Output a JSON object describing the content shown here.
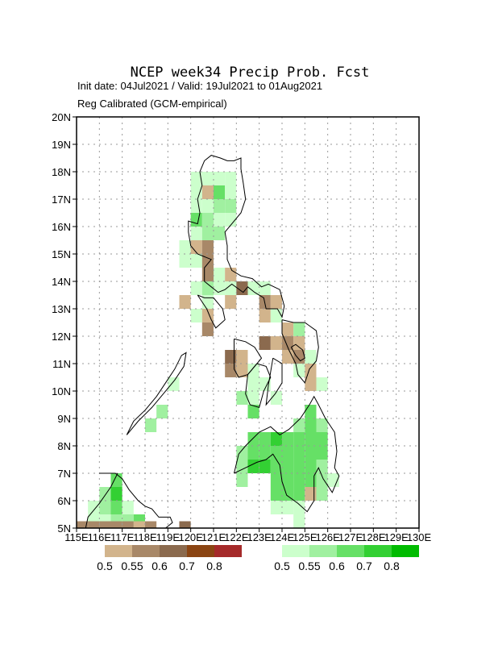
{
  "title": "NCEP week34 Precip Prob. Fcst",
  "subtitle_line1": "Init date: 04Jul2021 / Valid: 19Jul2021 to 01Aug2021",
  "subtitle_line2": "Reg Calibrated (GCM-empirical)",
  "map": {
    "lon_range": [
      115,
      130
    ],
    "lat_range": [
      5,
      20
    ],
    "lat_ticks": [
      "5N",
      "6N",
      "7N",
      "8N",
      "9N",
      "10N",
      "11N",
      "12N",
      "13N",
      "14N",
      "15N",
      "16N",
      "17N",
      "18N",
      "19N",
      "20N"
    ],
    "lon_ticks": [
      "115E",
      "116E",
      "117E",
      "118E",
      "119E",
      "120E",
      "121E",
      "122E",
      "123E",
      "124E",
      "125E",
      "126E",
      "127E",
      "128E",
      "129E",
      "130E"
    ],
    "grid": "dotted"
  },
  "legend": {
    "dry": {
      "colors": [
        "#d2b48c",
        "#a88868",
        "#8b6a4e",
        "#8b4513",
        "#a52a2a"
      ],
      "labels": [
        "0.5",
        "0.55",
        "0.6",
        "0.7",
        "0.8"
      ]
    },
    "wet": {
      "colors": [
        "#ccffcc",
        "#a0f0a0",
        "#66e066",
        "#33d033",
        "#00bb00"
      ],
      "labels": [
        "0.5",
        "0.55",
        "0.6",
        "0.7",
        "0.8"
      ]
    }
  },
  "cells": [
    {
      "lon": 120.25,
      "lat": 17.75,
      "c": "#ccffcc"
    },
    {
      "lon": 120.75,
      "lat": 17.75,
      "c": "#ccffcc"
    },
    {
      "lon": 121.25,
      "lat": 17.75,
      "c": "#ccffcc"
    },
    {
      "lon": 121.75,
      "lat": 17.75,
      "c": "#ccffcc"
    },
    {
      "lon": 120.25,
      "lat": 17.25,
      "c": "#ccffcc"
    },
    {
      "lon": 120.75,
      "lat": 17.25,
      "c": "#d2b48c"
    },
    {
      "lon": 121.25,
      "lat": 17.25,
      "c": "#66e066"
    },
    {
      "lon": 121.75,
      "lat": 17.25,
      "c": "#ccffcc"
    },
    {
      "lon": 120.25,
      "lat": 16.75,
      "c": "#ccffcc"
    },
    {
      "lon": 120.75,
      "lat": 16.75,
      "c": "#ccffcc"
    },
    {
      "lon": 121.25,
      "lat": 16.75,
      "c": "#a0f0a0"
    },
    {
      "lon": 121.75,
      "lat": 16.75,
      "c": "#a0f0a0"
    },
    {
      "lon": 120.25,
      "lat": 16.25,
      "c": "#66e066"
    },
    {
      "lon": 120.75,
      "lat": 16.25,
      "c": "#a0f0a0"
    },
    {
      "lon": 121.25,
      "lat": 16.25,
      "c": "#ccffcc"
    },
    {
      "lon": 121.75,
      "lat": 16.25,
      "c": "#ccffcc"
    },
    {
      "lon": 120.25,
      "lat": 15.75,
      "c": "#ccffcc"
    },
    {
      "lon": 120.75,
      "lat": 15.75,
      "c": "#a0f0a0"
    },
    {
      "lon": 121.25,
      "lat": 15.75,
      "c": "#a0f0a0"
    },
    {
      "lon": 119.75,
      "lat": 15.25,
      "c": "#ccffcc"
    },
    {
      "lon": 120.25,
      "lat": 15.25,
      "c": "#d2b48c"
    },
    {
      "lon": 120.75,
      "lat": 15.25,
      "c": "#a88868"
    },
    {
      "lon": 119.75,
      "lat": 14.75,
      "c": "#ccffcc"
    },
    {
      "lon": 120.25,
      "lat": 14.75,
      "c": "#ccffcc"
    },
    {
      "lon": 120.75,
      "lat": 14.75,
      "c": "#a88868"
    },
    {
      "lon": 120.75,
      "lat": 14.25,
      "c": "#a88868"
    },
    {
      "lon": 121.25,
      "lat": 14.25,
      "c": "#ccffcc"
    },
    {
      "lon": 121.75,
      "lat": 14.25,
      "c": "#d2b48c"
    },
    {
      "lon": 120.25,
      "lat": 13.75,
      "c": "#ccffcc"
    },
    {
      "lon": 120.75,
      "lat": 13.75,
      "c": "#a0f0a0"
    },
    {
      "lon": 121.25,
      "lat": 13.75,
      "c": "#ccffcc"
    },
    {
      "lon": 121.75,
      "lat": 13.75,
      "c": "#ccffcc"
    },
    {
      "lon": 122.25,
      "lat": 13.75,
      "c": "#8b6a4e"
    },
    {
      "lon": 122.75,
      "lat": 13.75,
      "c": "#ccffcc"
    },
    {
      "lon": 123.25,
      "lat": 13.75,
      "c": "#ccffcc"
    },
    {
      "lon": 119.75,
      "lat": 13.25,
      "c": "#d2b48c"
    },
    {
      "lon": 120.75,
      "lat": 13.25,
      "c": "#ccffcc"
    },
    {
      "lon": 121.75,
      "lat": 13.25,
      "c": "#d2b48c"
    },
    {
      "lon": 123.25,
      "lat": 13.25,
      "c": "#a88868"
    },
    {
      "lon": 123.75,
      "lat": 13.25,
      "c": "#d2b48c"
    },
    {
      "lon": 120.25,
      "lat": 12.75,
      "c": "#ccffcc"
    },
    {
      "lon": 120.75,
      "lat": 12.75,
      "c": "#d2b48c"
    },
    {
      "lon": 123.25,
      "lat": 12.75,
      "c": "#d2b48c"
    },
    {
      "lon": 123.75,
      "lat": 12.75,
      "c": "#ccffcc"
    },
    {
      "lon": 120.75,
      "lat": 12.25,
      "c": "#a88868"
    },
    {
      "lon": 124.25,
      "lat": 12.25,
      "c": "#d2b48c"
    },
    {
      "lon": 124.75,
      "lat": 12.25,
      "c": "#a0f0a0"
    },
    {
      "lon": 123.25,
      "lat": 11.75,
      "c": "#8b6a4e"
    },
    {
      "lon": 123.75,
      "lat": 11.75,
      "c": "#d2b48c"
    },
    {
      "lon": 124.25,
      "lat": 11.75,
      "c": "#a88868"
    },
    {
      "lon": 124.75,
      "lat": 11.75,
      "c": "#d2b48c"
    },
    {
      "lon": 121.75,
      "lat": 11.25,
      "c": "#8b6a4e"
    },
    {
      "lon": 122.25,
      "lat": 11.25,
      "c": "#d2b48c"
    },
    {
      "lon": 124.25,
      "lat": 11.25,
      "c": "#d2b48c"
    },
    {
      "lon": 124.75,
      "lat": 11.25,
      "c": "#a88868"
    },
    {
      "lon": 125.25,
      "lat": 11.25,
      "c": "#ccffcc"
    },
    {
      "lon": 121.75,
      "lat": 10.75,
      "c": "#a88868"
    },
    {
      "lon": 122.25,
      "lat": 10.75,
      "c": "#d2b48c"
    },
    {
      "lon": 122.75,
      "lat": 10.75,
      "c": "#ccffcc"
    },
    {
      "lon": 124.75,
      "lat": 10.75,
      "c": "#ccffcc"
    },
    {
      "lon": 125.25,
      "lat": 10.75,
      "c": "#d2b48c"
    },
    {
      "lon": 119.25,
      "lat": 10.25,
      "c": "#ccffcc"
    },
    {
      "lon": 122.75,
      "lat": 10.25,
      "c": "#ccffcc"
    },
    {
      "lon": 123.25,
      "lat": 10.25,
      "c": "#ccffcc"
    },
    {
      "lon": 125.25,
      "lat": 10.25,
      "c": "#d2b48c"
    },
    {
      "lon": 125.75,
      "lat": 10.25,
      "c": "#ccffcc"
    },
    {
      "lon": 122.25,
      "lat": 9.75,
      "c": "#a0f0a0"
    },
    {
      "lon": 122.75,
      "lat": 9.75,
      "c": "#ccffcc"
    },
    {
      "lon": 123.75,
      "lat": 9.75,
      "c": "#ccffcc"
    },
    {
      "lon": 118.75,
      "lat": 9.25,
      "c": "#a0f0a0"
    },
    {
      "lon": 122.75,
      "lat": 9.25,
      "c": "#66e066"
    },
    {
      "lon": 125.25,
      "lat": 9.25,
      "c": "#66e066"
    },
    {
      "lon": 118.25,
      "lat": 8.75,
      "c": "#a0f0a0"
    },
    {
      "lon": 124.75,
      "lat": 8.75,
      "c": "#a0f0a0"
    },
    {
      "lon": 125.25,
      "lat": 8.75,
      "c": "#66e066"
    },
    {
      "lon": 125.75,
      "lat": 8.75,
      "c": "#a0f0a0"
    },
    {
      "lon": 122.75,
      "lat": 8.25,
      "c": "#66e066"
    },
    {
      "lon": 123.25,
      "lat": 8.25,
      "c": "#66e066"
    },
    {
      "lon": 123.75,
      "lat": 8.25,
      "c": "#33d033"
    },
    {
      "lon": 124.25,
      "lat": 8.25,
      "c": "#66e066"
    },
    {
      "lon": 124.75,
      "lat": 8.25,
      "c": "#66e066"
    },
    {
      "lon": 125.25,
      "lat": 8.25,
      "c": "#66e066"
    },
    {
      "lon": 125.75,
      "lat": 8.25,
      "c": "#66e066"
    },
    {
      "lon": 122.25,
      "lat": 7.75,
      "c": "#a0f0a0"
    },
    {
      "lon": 122.75,
      "lat": 7.75,
      "c": "#66e066"
    },
    {
      "lon": 123.25,
      "lat": 7.75,
      "c": "#66e066"
    },
    {
      "lon": 123.75,
      "lat": 7.75,
      "c": "#66e066"
    },
    {
      "lon": 124.25,
      "lat": 7.75,
      "c": "#66e066"
    },
    {
      "lon": 124.75,
      "lat": 7.75,
      "c": "#66e066"
    },
    {
      "lon": 125.25,
      "lat": 7.75,
      "c": "#66e066"
    },
    {
      "lon": 125.75,
      "lat": 7.75,
      "c": "#66e066"
    },
    {
      "lon": 122.25,
      "lat": 7.25,
      "c": "#a0f0a0"
    },
    {
      "lon": 122.75,
      "lat": 7.25,
      "c": "#33d033"
    },
    {
      "lon": 123.25,
      "lat": 7.25,
      "c": "#33d033"
    },
    {
      "lon": 123.75,
      "lat": 7.25,
      "c": "#66e066"
    },
    {
      "lon": 124.25,
      "lat": 7.25,
      "c": "#66e066"
    },
    {
      "lon": 124.75,
      "lat": 7.25,
      "c": "#66e066"
    },
    {
      "lon": 125.25,
      "lat": 7.25,
      "c": "#66e066"
    },
    {
      "lon": 125.75,
      "lat": 7.25,
      "c": "#a0f0a0"
    },
    {
      "lon": 116.75,
      "lat": 6.75,
      "c": "#66e066"
    },
    {
      "lon": 122.25,
      "lat": 6.75,
      "c": "#a0f0a0"
    },
    {
      "lon": 123.75,
      "lat": 6.75,
      "c": "#66e066"
    },
    {
      "lon": 124.25,
      "lat": 6.75,
      "c": "#66e066"
    },
    {
      "lon": 124.75,
      "lat": 6.75,
      "c": "#66e066"
    },
    {
      "lon": 125.25,
      "lat": 6.75,
      "c": "#66e066"
    },
    {
      "lon": 125.75,
      "lat": 6.75,
      "c": "#a0f0a0"
    },
    {
      "lon": 126.25,
      "lat": 6.75,
      "c": "#ccffcc"
    },
    {
      "lon": 116.25,
      "lat": 6.25,
      "c": "#a0f0a0"
    },
    {
      "lon": 116.75,
      "lat": 6.25,
      "c": "#33d033"
    },
    {
      "lon": 123.75,
      "lat": 6.25,
      "c": "#66e066"
    },
    {
      "lon": 124.25,
      "lat": 6.25,
      "c": "#66e066"
    },
    {
      "lon": 124.75,
      "lat": 6.25,
      "c": "#66e066"
    },
    {
      "lon": 125.25,
      "lat": 6.25,
      "c": "#d2b48c"
    },
    {
      "lon": 125.75,
      "lat": 6.25,
      "c": "#a0f0a0"
    },
    {
      "lon": 115.75,
      "lat": 5.75,
      "c": "#ccffcc"
    },
    {
      "lon": 116.25,
      "lat": 5.75,
      "c": "#a0f0a0"
    },
    {
      "lon": 116.75,
      "lat": 5.75,
      "c": "#66e066"
    },
    {
      "lon": 117.25,
      "lat": 5.75,
      "c": "#ccffcc"
    },
    {
      "lon": 123.75,
      "lat": 5.75,
      "c": "#ccffcc"
    },
    {
      "lon": 124.25,
      "lat": 5.75,
      "c": "#ccffcc"
    },
    {
      "lon": 124.75,
      "lat": 5.75,
      "c": "#ccffcc"
    },
    {
      "lon": 115.75,
      "lat": 5.25,
      "c": "#ccffcc"
    },
    {
      "lon": 116.25,
      "lat": 5.25,
      "c": "#ccffcc"
    },
    {
      "lon": 116.75,
      "lat": 5.25,
      "c": "#a0f0a0"
    },
    {
      "lon": 117.25,
      "lat": 5.25,
      "c": "#a0f0a0"
    },
    {
      "lon": 117.75,
      "lat": 5.25,
      "c": "#66e066"
    },
    {
      "lon": 124.75,
      "lat": 5.25,
      "c": "#ccffcc"
    },
    {
      "lon": 115.25,
      "lat": 5.0,
      "c": "#a88868"
    },
    {
      "lon": 115.75,
      "lat": 5.0,
      "c": "#a88868"
    },
    {
      "lon": 116.25,
      "lat": 5.0,
      "c": "#a88868"
    },
    {
      "lon": 116.75,
      "lat": 5.0,
      "c": "#a88868"
    },
    {
      "lon": 117.25,
      "lat": 5.0,
      "c": "#a88868"
    },
    {
      "lon": 117.75,
      "lat": 5.0,
      "c": "#d2b48c"
    },
    {
      "lon": 118.25,
      "lat": 5.0,
      "c": "#a88868"
    },
    {
      "lon": 119.75,
      "lat": 5.0,
      "c": "#8b6a4e"
    }
  ],
  "coastlines": [
    [
      [
        121.6,
        18.4
      ],
      [
        121.9,
        18.4
      ],
      [
        122.2,
        18.5
      ],
      [
        122.2,
        18.1
      ],
      [
        122.3,
        17.6
      ],
      [
        122.4,
        17.0
      ],
      [
        122.2,
        16.5
      ],
      [
        121.8,
        16.1
      ],
      [
        121.5,
        15.8
      ],
      [
        121.6,
        15.3
      ],
      [
        121.6,
        14.8
      ],
      [
        121.8,
        14.4
      ],
      [
        122.2,
        14.2
      ],
      [
        122.7,
        14.1
      ],
      [
        123.1,
        13.8
      ],
      [
        123.4,
        13.9
      ],
      [
        123.9,
        13.7
      ],
      [
        124.1,
        13.1
      ],
      [
        124.0,
        12.7
      ],
      [
        123.8,
        13.0
      ],
      [
        123.3,
        13.0
      ],
      [
        123.2,
        13.4
      ],
      [
        122.8,
        13.6
      ],
      [
        122.5,
        13.8
      ],
      [
        122.3,
        13.6
      ],
      [
        121.8,
        13.9
      ],
      [
        121.5,
        13.7
      ],
      [
        121.2,
        13.6
      ],
      [
        120.9,
        13.8
      ],
      [
        120.6,
        14.0
      ],
      [
        120.6,
        14.5
      ],
      [
        120.9,
        14.8
      ],
      [
        120.6,
        14.9
      ],
      [
        120.3,
        15.0
      ],
      [
        120.0,
        15.3
      ],
      [
        119.9,
        15.8
      ],
      [
        119.9,
        16.2
      ],
      [
        120.3,
        16.1
      ],
      [
        120.4,
        16.5
      ],
      [
        120.3,
        17.0
      ],
      [
        120.5,
        17.5
      ],
      [
        120.4,
        18.0
      ],
      [
        120.6,
        18.4
      ],
      [
        120.9,
        18.6
      ],
      [
        121.3,
        18.5
      ],
      [
        121.6,
        18.4
      ]
    ],
    [
      [
        120.3,
        13.5
      ],
      [
        120.6,
        13.4
      ],
      [
        121.0,
        13.4
      ],
      [
        121.4,
        13.0
      ],
      [
        121.5,
        12.6
      ],
      [
        121.1,
        12.3
      ],
      [
        120.9,
        12.6
      ],
      [
        120.7,
        13.0
      ],
      [
        120.3,
        13.5
      ]
    ],
    [
      [
        124.0,
        12.6
      ],
      [
        124.5,
        12.5
      ],
      [
        125.0,
        12.5
      ],
      [
        125.5,
        12.2
      ],
      [
        125.6,
        11.6
      ],
      [
        125.5,
        11.1
      ],
      [
        125.2,
        10.8
      ],
      [
        125.0,
        10.3
      ],
      [
        124.7,
        10.6
      ],
      [
        124.6,
        11.0
      ],
      [
        124.3,
        11.5
      ],
      [
        124.0,
        12.1
      ],
      [
        124.0,
        12.6
      ]
    ],
    [
      [
        124.4,
        11.6
      ],
      [
        124.6,
        11.3
      ],
      [
        124.8,
        11.1
      ],
      [
        125.0,
        11.2
      ],
      [
        124.9,
        11.5
      ],
      [
        124.6,
        11.7
      ],
      [
        124.4,
        11.6
      ]
    ],
    [
      [
        121.9,
        11.9
      ],
      [
        122.4,
        11.8
      ],
      [
        122.8,
        11.6
      ],
      [
        123.1,
        11.2
      ],
      [
        122.8,
        10.9
      ],
      [
        122.5,
        10.6
      ],
      [
        122.1,
        10.5
      ],
      [
        121.9,
        10.8
      ],
      [
        121.9,
        11.3
      ],
      [
        121.9,
        11.9
      ]
    ],
    [
      [
        122.9,
        11.0
      ],
      [
        123.3,
        10.9
      ],
      [
        123.5,
        10.5
      ],
      [
        123.2,
        10.0
      ],
      [
        123.0,
        9.4
      ],
      [
        122.6,
        9.5
      ],
      [
        122.4,
        9.9
      ],
      [
        122.5,
        10.6
      ],
      [
        122.9,
        11.0
      ]
    ],
    [
      [
        123.6,
        11.2
      ],
      [
        124.0,
        11.0
      ],
      [
        124.0,
        10.3
      ],
      [
        123.7,
        9.9
      ],
      [
        123.3,
        9.5
      ],
      [
        123.4,
        10.2
      ],
      [
        123.6,
        11.2
      ]
    ],
    [
      [
        117.2,
        8.4
      ],
      [
        117.7,
        8.9
      ],
      [
        118.3,
        9.4
      ],
      [
        118.8,
        9.9
      ],
      [
        119.3,
        10.4
      ],
      [
        119.7,
        10.9
      ],
      [
        119.8,
        11.4
      ],
      [
        119.6,
        11.3
      ],
      [
        119.3,
        10.8
      ],
      [
        118.9,
        10.3
      ],
      [
        118.5,
        9.8
      ],
      [
        118.0,
        9.3
      ],
      [
        117.5,
        8.9
      ],
      [
        117.2,
        8.4
      ]
    ],
    [
      [
        121.9,
        7.0
      ],
      [
        122.1,
        7.7
      ],
      [
        122.4,
        8.0
      ],
      [
        123.0,
        8.5
      ],
      [
        123.5,
        8.7
      ],
      [
        123.9,
        8.4
      ],
      [
        124.3,
        8.6
      ],
      [
        124.8,
        9.0
      ],
      [
        125.2,
        9.5
      ],
      [
        125.4,
        9.8
      ],
      [
        125.6,
        9.5
      ],
      [
        125.9,
        9.0
      ],
      [
        126.3,
        8.5
      ],
      [
        126.4,
        7.8
      ],
      [
        126.3,
        7.2
      ],
      [
        126.5,
        6.9
      ],
      [
        126.2,
        6.3
      ],
      [
        125.8,
        6.8
      ],
      [
        125.6,
        7.2
      ],
      [
        125.4,
        6.9
      ],
      [
        125.4,
        6.0
      ],
      [
        125.1,
        5.6
      ],
      [
        124.7,
        5.9
      ],
      [
        124.2,
        6.2
      ],
      [
        124.0,
        6.7
      ],
      [
        123.9,
        7.3
      ],
      [
        123.6,
        7.7
      ],
      [
        123.3,
        7.5
      ],
      [
        122.9,
        7.4
      ],
      [
        122.4,
        7.2
      ],
      [
        121.9,
        7.0
      ]
    ],
    [
      [
        116.0,
        7.0
      ],
      [
        116.7,
        7.0
      ],
      [
        117.0,
        6.8
      ],
      [
        117.3,
        6.4
      ],
      [
        117.7,
        6.0
      ],
      [
        118.0,
        5.8
      ],
      [
        118.3,
        5.7
      ],
      [
        118.6,
        5.4
      ],
      [
        119.1,
        5.4
      ],
      [
        119.2,
        5.2
      ],
      [
        118.9,
        5.0
      ],
      [
        118.0,
        5.0
      ],
      [
        116.5,
        5.0
      ],
      [
        115.4,
        5.0
      ],
      [
        115.5,
        5.4
      ],
      [
        116.0,
        5.9
      ],
      [
        116.5,
        6.5
      ],
      [
        116.8,
        7.0
      ]
    ]
  ]
}
